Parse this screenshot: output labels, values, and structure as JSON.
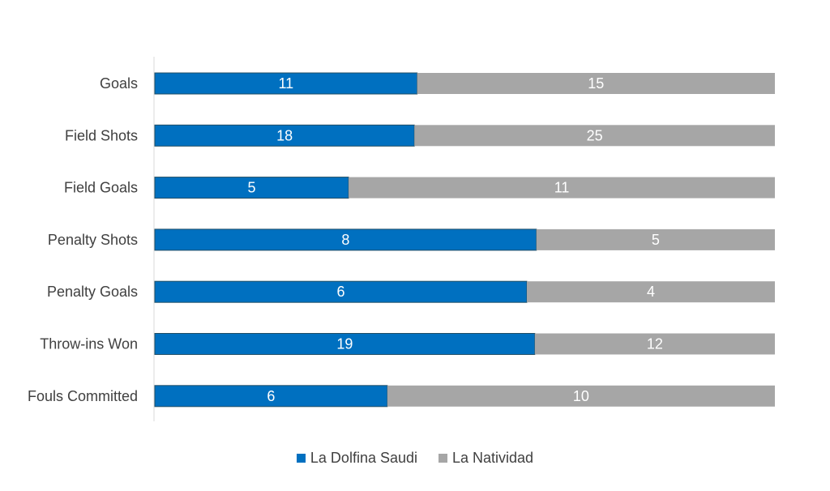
{
  "chart_data": {
    "type": "bar",
    "orientation": "horizontal",
    "stacked": "percent",
    "categories": [
      "Goals",
      "Field Shots",
      "Field Goals",
      "Penalty Shots",
      "Penalty Goals",
      "Throw-ins Won",
      "Fouls Committed"
    ],
    "series": [
      {
        "name": "La Dolfina Saudi",
        "values": [
          11,
          18,
          5,
          8,
          6,
          19,
          6
        ],
        "color": "#0070c0"
      },
      {
        "name": "La Natividad",
        "values": [
          15,
          25,
          11,
          5,
          4,
          12,
          10
        ],
        "color": "#a6a6a6"
      }
    ],
    "title": "",
    "xlabel": "",
    "ylabel": "",
    "grid": false,
    "legend_position": "bottom"
  }
}
